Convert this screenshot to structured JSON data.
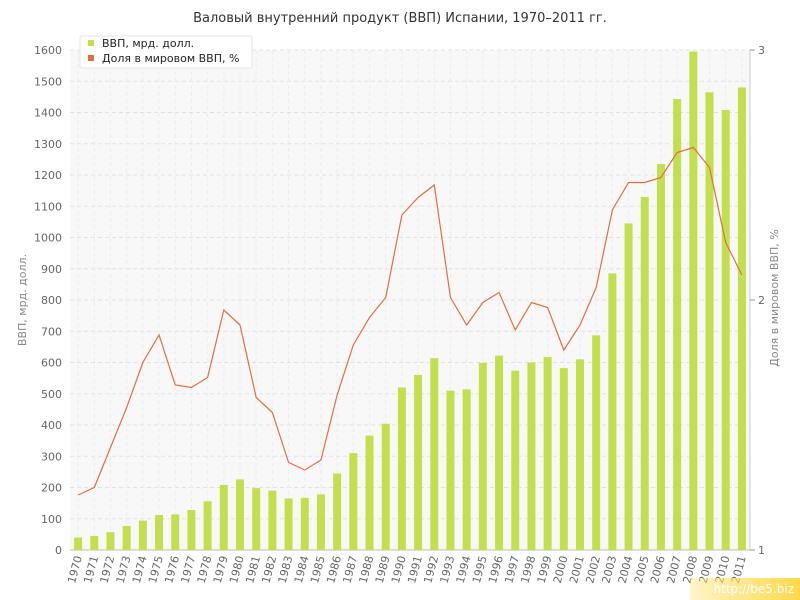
{
  "chart_data": {
    "type": "bar",
    "title": "Валовый внутренний продукт (ВВП) Испании, 1970–2011 гг.",
    "ylabel": "ВВП, мрд. долл.",
    "y2label": "Доля в мировом ВВП, %",
    "ylim": [
      0,
      1600
    ],
    "y2lim": [
      1,
      3
    ],
    "yticks": [
      0,
      100,
      200,
      300,
      400,
      500,
      600,
      700,
      800,
      900,
      1000,
      1100,
      1200,
      1300,
      1400,
      1500,
      1600
    ],
    "y2ticks": [
      1,
      2,
      3
    ],
    "grid": true,
    "legend_position": "top-left",
    "categories": [
      "1970",
      "1971",
      "1972",
      "1973",
      "1974",
      "1975",
      "1976",
      "1977",
      "1978",
      "1979",
      "1980",
      "1981",
      "1982",
      "1983",
      "1984",
      "1985",
      "1986",
      "1987",
      "1988",
      "1989",
      "1990",
      "1991",
      "1992",
      "1993",
      "1994",
      "1995",
      "1996",
      "1997",
      "1998",
      "1999",
      "2000",
      "2001",
      "2002",
      "2003",
      "2004",
      "2005",
      "2006",
      "2007",
      "2008",
      "2009",
      "2010",
      "2011"
    ],
    "series": [
      {
        "name": "ВВП, мрд. долл.",
        "type": "bar",
        "axis": "left",
        "color": "#c4df4e",
        "values": [
          40,
          45,
          57,
          77,
          94,
          112,
          114,
          128,
          156,
          208,
          226,
          198,
          190,
          165,
          167,
          178,
          245,
          310,
          366,
          404,
          520,
          560,
          614,
          510,
          514,
          599,
          622,
          574,
          600,
          618,
          582,
          610,
          687,
          885,
          1045,
          1130,
          1235,
          1443,
          1595,
          1465,
          1408,
          1480
        ]
      },
      {
        "name": "Доля в мировом ВВП, %",
        "type": "line",
        "axis": "right",
        "color": "#e07040",
        "values": [
          1.22,
          1.25,
          1.41,
          1.57,
          1.75,
          1.86,
          1.66,
          1.65,
          1.69,
          1.96,
          1.9,
          1.61,
          1.55,
          1.35,
          1.32,
          1.36,
          1.62,
          1.82,
          1.93,
          2.01,
          2.34,
          2.41,
          2.46,
          2.01,
          1.9,
          1.99,
          2.03,
          1.88,
          1.99,
          1.97,
          1.8,
          1.9,
          2.05,
          2.36,
          2.47,
          2.47,
          2.49,
          2.59,
          2.61,
          2.53,
          2.23,
          2.1
        ]
      }
    ]
  },
  "watermark": "http://be5.biz"
}
